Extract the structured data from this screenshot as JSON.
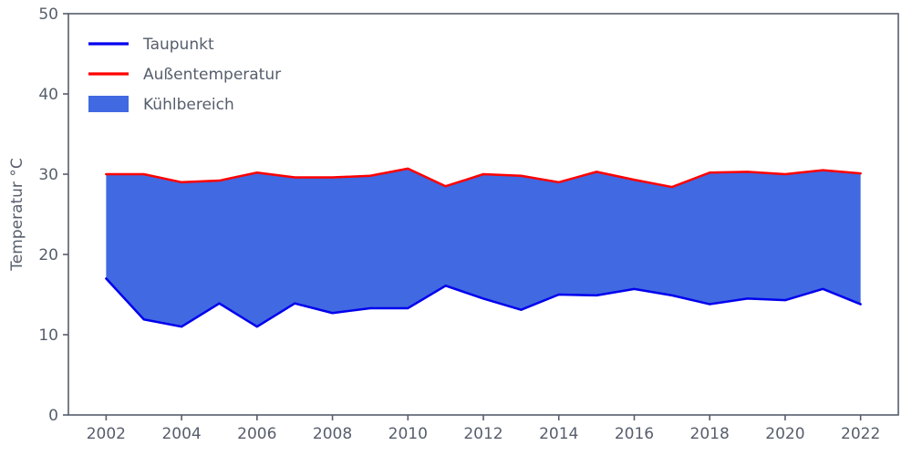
{
  "chart_data": {
    "type": "area",
    "title": "",
    "xlabel": "",
    "ylabel": "Temperatur °C",
    "xlim": [
      2001,
      2023
    ],
    "ylim": [
      0,
      50
    ],
    "xticks": [
      2002,
      2004,
      2006,
      2008,
      2010,
      2012,
      2014,
      2016,
      2018,
      2020,
      2022
    ],
    "yticks": [
      0,
      10,
      20,
      30,
      40,
      50
    ],
    "grid": false,
    "legend_position": "upper left",
    "axis_color": "#565e6c",
    "text_color": "#565e6c",
    "x": [
      2002,
      2003,
      2004,
      2005,
      2006,
      2007,
      2008,
      2009,
      2010,
      2011,
      2012,
      2013,
      2014,
      2015,
      2016,
      2017,
      2018,
      2019,
      2020,
      2021,
      2022
    ],
    "series": [
      {
        "name": "Taupunkt",
        "color": "#0000ee",
        "line_width": 2.5,
        "values": [
          17.0,
          11.9,
          11.0,
          13.9,
          11.0,
          13.9,
          12.7,
          13.3,
          13.3,
          16.1,
          14.5,
          13.1,
          15.0,
          14.9,
          15.7,
          14.9,
          13.8,
          14.5,
          14.3,
          15.7,
          13.8
        ]
      },
      {
        "name": "Außentemperatur",
        "color": "#ff0000",
        "line_width": 2.5,
        "values": [
          30.0,
          30.0,
          29.0,
          29.2,
          30.2,
          29.6,
          29.6,
          29.8,
          30.7,
          28.5,
          30.0,
          29.8,
          29.0,
          30.3,
          29.3,
          28.4,
          30.2,
          30.3,
          30.0,
          30.5,
          30.1
        ]
      }
    ],
    "fill_between": {
      "name": "Kühlbereich",
      "color": "#4169e1",
      "lower_series": "Taupunkt",
      "upper_series": "Außentemperatur"
    },
    "legend": [
      {
        "label": "Taupunkt",
        "swatch": "line",
        "color": "#0000ee"
      },
      {
        "label": "Außentemperatur",
        "swatch": "line",
        "color": "#ff0000"
      },
      {
        "label": "Kühlbereich",
        "swatch": "patch",
        "color": "#4169e1"
      }
    ]
  }
}
